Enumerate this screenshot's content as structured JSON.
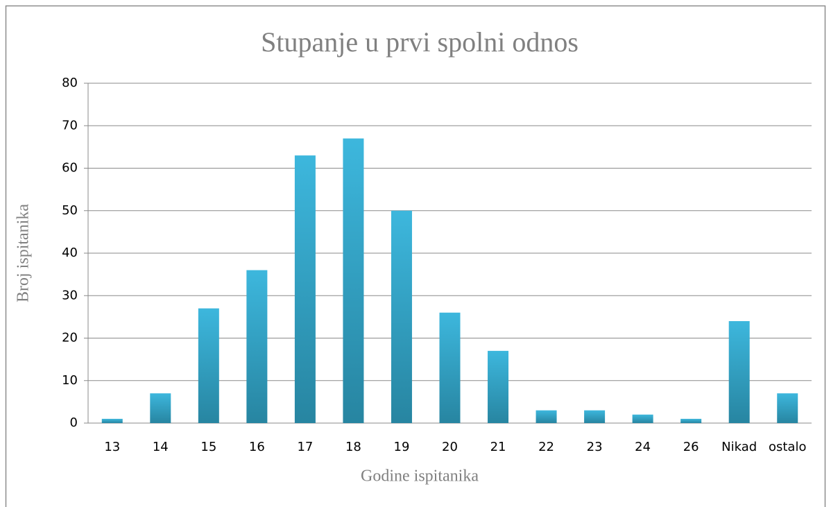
{
  "chart_data": {
    "type": "bar",
    "title": "Stupanje u prvi spolni odnos",
    "x_label": "Godine ispitanika",
    "y_label": "Broj ispitanika",
    "categories": [
      "13",
      "14",
      "15",
      "16",
      "17",
      "18",
      "19",
      "20",
      "21",
      "22",
      "23",
      "24",
      "26",
      "Nikad",
      "ostalo"
    ],
    "values": [
      1,
      7,
      27,
      36,
      63,
      67,
      50,
      26,
      17,
      3,
      3,
      2,
      1,
      24,
      7
    ],
    "color": [
      "#3db7dd",
      "#2785a1"
    ],
    "ylim": [
      0,
      80
    ],
    "yticks": [
      0,
      10,
      20,
      30,
      40,
      50,
      60,
      70,
      80
    ],
    "grid": true
  }
}
